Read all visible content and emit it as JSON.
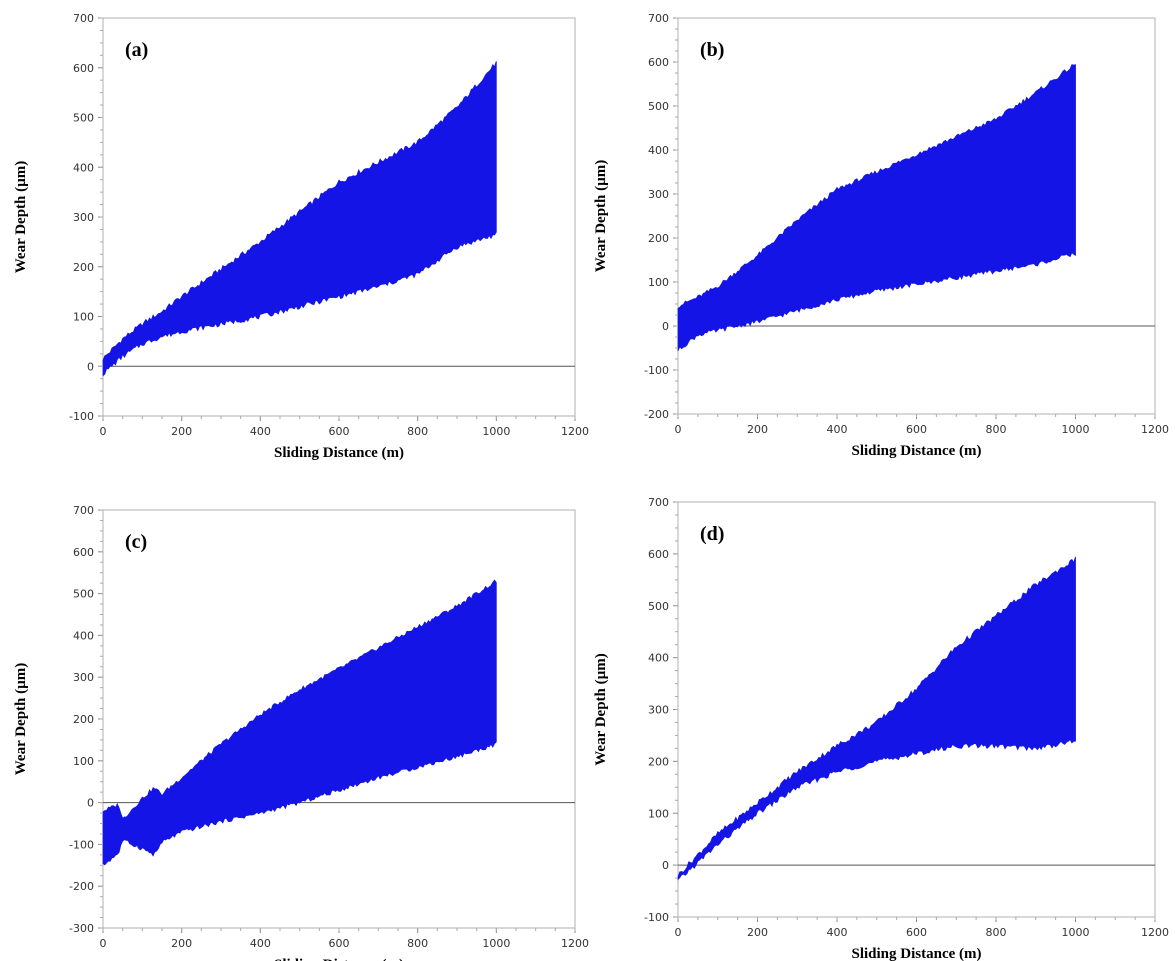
{
  "chart_data": [
    {
      "type": "area",
      "panel_label": "(a)",
      "xlabel": "Sliding Distance (m)",
      "ylabel": "Wear Depth (µm)",
      "xlim": [
        0,
        1200
      ],
      "ylim": [
        -100,
        700
      ],
      "xticks": [
        "0",
        "200",
        "400",
        "600",
        "800",
        "1000",
        "1200"
      ],
      "yticks": [
        "-100",
        "0",
        "100",
        "200",
        "300",
        "400",
        "500",
        "600",
        "700"
      ],
      "grid": false,
      "color": "#1414e6",
      "series": [
        {
          "values_label": "upper",
          "x": [
            0,
            50,
            100,
            150,
            200,
            300,
            400,
            500,
            600,
            700,
            800,
            900,
            1000
          ],
          "y": [
            15,
            55,
            85,
            110,
            140,
            195,
            250,
            310,
            370,
            410,
            450,
            520,
            610
          ]
        },
        {
          "values_label": "lower",
          "x": [
            0,
            50,
            100,
            150,
            200,
            300,
            400,
            500,
            600,
            700,
            800,
            900,
            1000
          ],
          "y": [
            -15,
            20,
            45,
            60,
            70,
            85,
            100,
            120,
            140,
            160,
            185,
            240,
            265
          ]
        }
      ]
    },
    {
      "type": "area",
      "panel_label": "(b)",
      "xlabel": "Sliding Distance (m)",
      "ylabel": "Wear Depth (µm)",
      "xlim": [
        0,
        1200
      ],
      "ylim": [
        -200,
        700
      ],
      "xticks": [
        "0",
        "200",
        "400",
        "600",
        "800",
        "1000",
        "1200"
      ],
      "yticks": [
        "-200",
        "-100",
        "0",
        "100",
        "200",
        "300",
        "400",
        "500",
        "600",
        "700"
      ],
      "grid": false,
      "color": "#1414e6",
      "series": [
        {
          "values_label": "upper",
          "x": [
            0,
            50,
            100,
            200,
            300,
            400,
            500,
            600,
            700,
            800,
            900,
            1000
          ],
          "y": [
            45,
            65,
            90,
            160,
            240,
            310,
            350,
            390,
            430,
            470,
            530,
            595
          ]
        },
        {
          "values_label": "lower",
          "x": [
            0,
            50,
            100,
            200,
            300,
            400,
            500,
            600,
            700,
            800,
            900,
            1000
          ],
          "y": [
            -55,
            -20,
            -10,
            10,
            35,
            60,
            80,
            95,
            110,
            125,
            140,
            165
          ]
        }
      ]
    },
    {
      "type": "area",
      "panel_label": "(c)",
      "xlabel": "Sliding Distance (m)",
      "ylabel": "Wear Depth (µm)",
      "xlim": [
        0,
        1200
      ],
      "ylim": [
        -300,
        700
      ],
      "xticks": [
        "0",
        "200",
        "400",
        "600",
        "800",
        "1000",
        "1200"
      ],
      "yticks": [
        "-300",
        "-200",
        "-100",
        "0",
        "100",
        "200",
        "300",
        "400",
        "500",
        "600",
        "700"
      ],
      "grid": false,
      "color": "#1414e6",
      "series": [
        {
          "values_label": "upper",
          "x": [
            0,
            40,
            50,
            100,
            130,
            150,
            200,
            300,
            400,
            500,
            600,
            700,
            800,
            900,
            1000
          ],
          "y": [
            -20,
            -5,
            -40,
            10,
            35,
            20,
            60,
            140,
            210,
            270,
            320,
            370,
            420,
            470,
            530
          ]
        },
        {
          "values_label": "lower",
          "x": [
            0,
            40,
            50,
            100,
            130,
            150,
            200,
            300,
            400,
            500,
            600,
            700,
            800,
            900,
            1000
          ],
          "y": [
            -150,
            -120,
            -90,
            -110,
            -125,
            -95,
            -70,
            -45,
            -25,
            0,
            30,
            60,
            85,
            110,
            140
          ]
        }
      ]
    },
    {
      "type": "area",
      "panel_label": "(d)",
      "xlabel": "Sliding Distance (m)",
      "ylabel": "Wear Depth (µm)",
      "xlim": [
        0,
        1200
      ],
      "ylim": [
        -100,
        700
      ],
      "xticks": [
        "0",
        "200",
        "400",
        "600",
        "800",
        "1000",
        "1200"
      ],
      "yticks": [
        "-100",
        "0",
        "100",
        "200",
        "300",
        "400",
        "500",
        "600",
        "700"
      ],
      "grid": false,
      "color": "#1414e6",
      "series": [
        {
          "values_label": "upper",
          "x": [
            0,
            50,
            100,
            200,
            300,
            400,
            500,
            600,
            700,
            800,
            900,
            1000
          ],
          "y": [
            -20,
            20,
            60,
            120,
            180,
            230,
            275,
            340,
            420,
            480,
            540,
            590
          ]
        },
        {
          "values_label": "lower",
          "x": [
            0,
            50,
            100,
            200,
            300,
            400,
            500,
            600,
            700,
            800,
            900,
            1000
          ],
          "y": [
            -30,
            5,
            40,
            100,
            150,
            180,
            200,
            215,
            230,
            230,
            225,
            240
          ]
        }
      ]
    }
  ]
}
